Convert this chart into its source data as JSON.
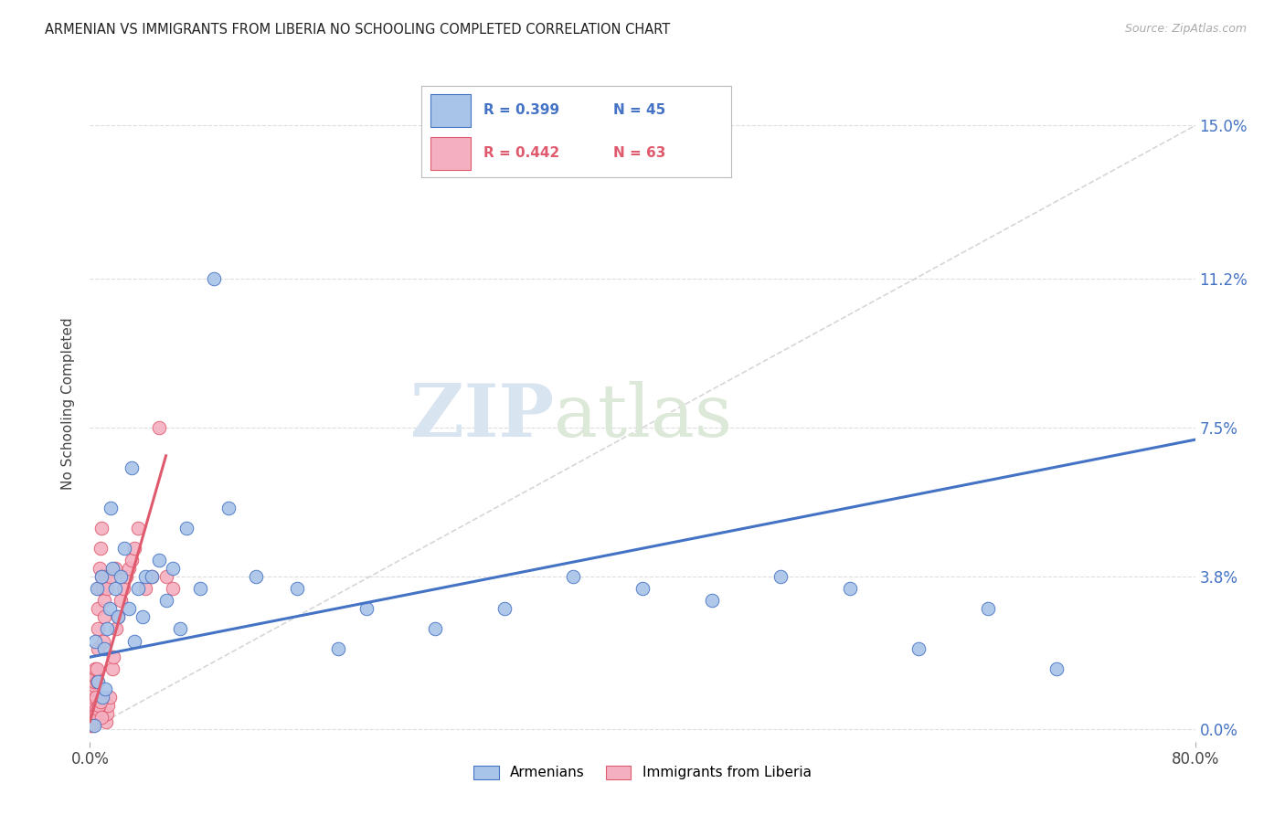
{
  "title": "ARMENIAN VS IMMIGRANTS FROM LIBERIA NO SCHOOLING COMPLETED CORRELATION CHART",
  "source": "Source: ZipAtlas.com",
  "ylabel": "No Schooling Completed",
  "ytick_values": [
    0.0,
    3.8,
    7.5,
    11.2,
    15.0
  ],
  "xlim": [
    0.0,
    80.0
  ],
  "ylim": [
    -0.3,
    16.5
  ],
  "diagonal_line_color": "#cccccc",
  "blue_line_color": "#4472c4",
  "pink_line_color": "#e05a6e",
  "blue_scatter_color": "#a8c4e8",
  "pink_scatter_color": "#f4b0c0",
  "legend_R1": "R = 0.399",
  "legend_N1": "N = 45",
  "legend_R2": "R = 0.442",
  "legend_N2": "N = 63",
  "watermark_zip": "ZIP",
  "watermark_atlas": "atlas",
  "blue_trend_x": [
    0.0,
    80.0
  ],
  "blue_trend_y": [
    1.8,
    7.2
  ],
  "pink_trend_x": [
    0.0,
    5.5
  ],
  "pink_trend_y": [
    0.2,
    6.8
  ],
  "blue_scatter_x": [
    0.4,
    0.5,
    0.6,
    0.8,
    1.0,
    1.2,
    1.4,
    1.5,
    1.6,
    1.8,
    2.0,
    2.2,
    2.5,
    2.8,
    3.0,
    3.2,
    3.5,
    4.0,
    4.5,
    5.0,
    5.5,
    6.0,
    6.5,
    7.0,
    8.0,
    9.0,
    10.0,
    12.0,
    15.0,
    18.0,
    20.0,
    25.0,
    30.0,
    35.0,
    40.0,
    45.0,
    50.0,
    55.0,
    60.0,
    65.0,
    70.0,
    0.3,
    0.9,
    1.1,
    3.8
  ],
  "blue_scatter_y": [
    2.2,
    3.5,
    1.2,
    3.8,
    2.0,
    2.5,
    3.0,
    5.5,
    4.0,
    3.5,
    2.8,
    3.8,
    4.5,
    3.0,
    6.5,
    2.2,
    3.5,
    3.8,
    3.8,
    4.2,
    3.2,
    4.0,
    2.5,
    5.0,
    3.5,
    11.2,
    5.5,
    3.8,
    3.5,
    2.0,
    3.0,
    2.5,
    3.0,
    3.8,
    3.5,
    3.2,
    3.8,
    3.5,
    2.0,
    3.0,
    1.5,
    0.1,
    0.8,
    1.0,
    2.8
  ],
  "pink_scatter_x": [
    0.05,
    0.08,
    0.1,
    0.12,
    0.15,
    0.18,
    0.2,
    0.22,
    0.25,
    0.28,
    0.3,
    0.33,
    0.35,
    0.38,
    0.4,
    0.42,
    0.45,
    0.48,
    0.5,
    0.55,
    0.58,
    0.6,
    0.65,
    0.7,
    0.75,
    0.8,
    0.85,
    0.9,
    0.95,
    1.0,
    1.05,
    1.1,
    1.15,
    1.2,
    1.25,
    1.3,
    1.4,
    1.5,
    1.6,
    1.7,
    1.8,
    1.9,
    2.0,
    2.2,
    2.4,
    2.6,
    2.8,
    3.0,
    3.2,
    3.5,
    4.0,
    4.5,
    5.0,
    5.5,
    6.0,
    0.15,
    0.25,
    0.35,
    0.45,
    0.55,
    0.65,
    0.75,
    0.85
  ],
  "pink_scatter_y": [
    0.1,
    0.2,
    0.3,
    0.4,
    0.5,
    0.6,
    0.7,
    0.8,
    0.9,
    1.0,
    1.1,
    1.2,
    1.3,
    1.5,
    0.3,
    0.5,
    0.8,
    1.2,
    1.5,
    2.0,
    2.5,
    3.0,
    3.5,
    4.0,
    4.5,
    5.0,
    3.8,
    3.5,
    2.2,
    2.8,
    3.2,
    3.8,
    0.2,
    0.4,
    3.5,
    0.6,
    0.8,
    3.8,
    1.5,
    1.8,
    4.0,
    2.5,
    2.8,
    3.2,
    3.5,
    3.8,
    4.0,
    4.2,
    4.5,
    5.0,
    3.5,
    3.8,
    7.5,
    3.8,
    3.5,
    0.1,
    0.2,
    0.3,
    0.4,
    0.5,
    0.6,
    0.7,
    0.3
  ]
}
